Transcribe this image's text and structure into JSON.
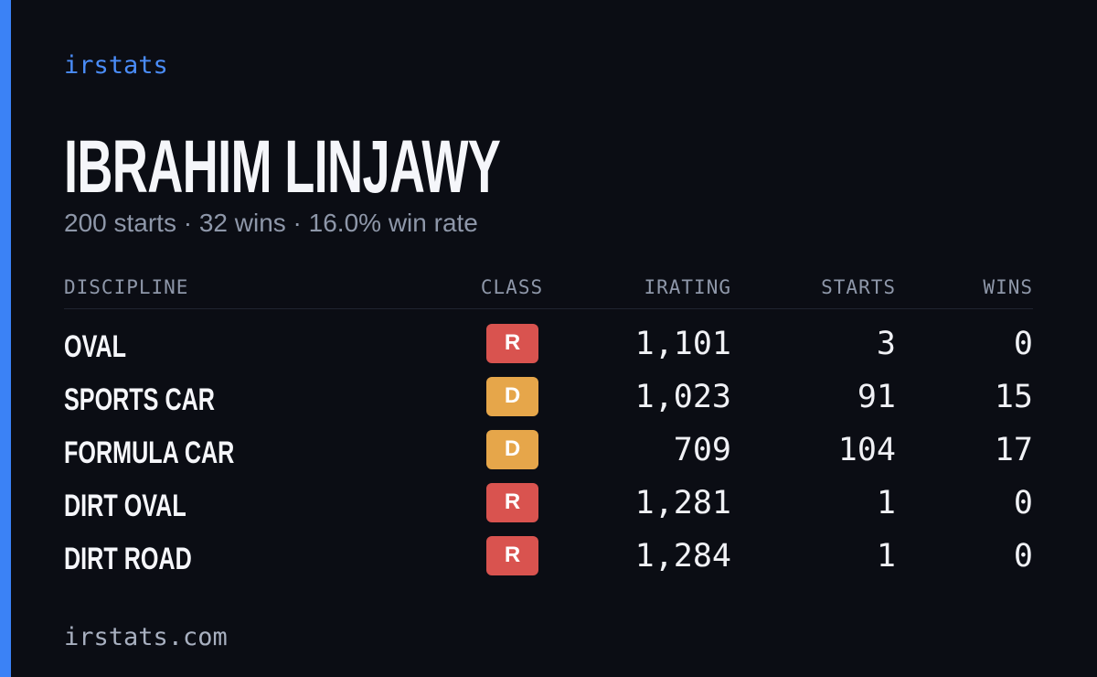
{
  "brand": "irstats",
  "profile": {
    "name": "IBRAHIM LINJAWY",
    "summary": "200 starts · 32 wins · 16.0% win rate"
  },
  "table": {
    "headers": [
      "DISCIPLINE",
      "CLASS",
      "IRATING",
      "STARTS",
      "WINS"
    ],
    "class_colors": {
      "R": "#d9534f",
      "D": "#e6a64a"
    },
    "rows": [
      [
        "OVAL",
        "R",
        "1,101",
        "3",
        "0"
      ],
      [
        "SPORTS CAR",
        "D",
        "1,023",
        "91",
        "15"
      ],
      [
        "FORMULA CAR",
        "D",
        "709",
        "104",
        "17"
      ],
      [
        "DIRT OVAL",
        "R",
        "1,281",
        "1",
        "0"
      ],
      [
        "DIRT ROAD",
        "R",
        "1,284",
        "1",
        "0"
      ]
    ]
  },
  "footer": "irstats.com"
}
